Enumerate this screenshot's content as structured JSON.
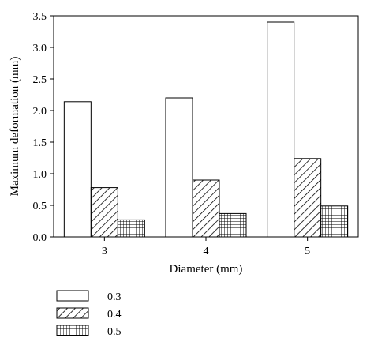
{
  "chart_data": {
    "type": "bar",
    "title": "",
    "xlabel": "Diameter (mm)",
    "ylabel": "Maximum deformation (mm)",
    "categories": [
      "3",
      "4",
      "5"
    ],
    "ylim": [
      0,
      3.5
    ],
    "yticks": [
      "0.0",
      "0.5",
      "1.0",
      "1.5",
      "2.0",
      "2.5",
      "3.0",
      "3.5"
    ],
    "grid": false,
    "legend_position": "bottom-left",
    "series": [
      {
        "name": "0.3",
        "values": [
          2.14,
          2.2,
          3.4
        ],
        "fill": "none"
      },
      {
        "name": "0.4",
        "values": [
          0.78,
          0.9,
          1.24
        ],
        "fill": "diagonal-hatch"
      },
      {
        "name": "0.5",
        "values": [
          0.27,
          0.37,
          0.49
        ],
        "fill": "grid-hatch"
      }
    ],
    "colors": {
      "stroke": "#000000",
      "background": "#ffffff"
    }
  }
}
